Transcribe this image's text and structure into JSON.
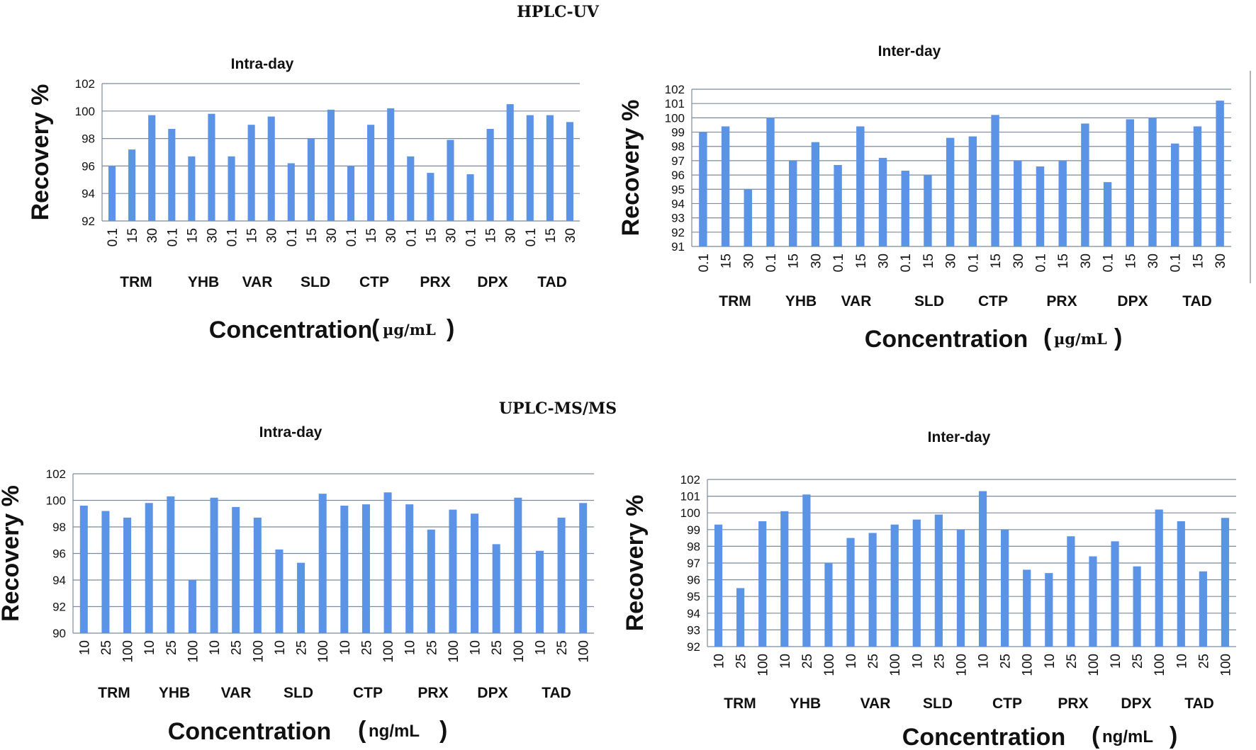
{
  "sections": {
    "top": "HPLC-UV",
    "bottom": "UPLC-MS/MS"
  },
  "chart_data": [
    {
      "type": "bar",
      "title": "Intra-day",
      "ylabel": "Recovery %",
      "xlabel": "Concentration",
      "unit": "µg/mL",
      "ylim": [
        92,
        102
      ],
      "yticks": [
        92,
        94,
        96,
        98,
        100,
        102
      ],
      "grid": true,
      "groups": [
        "TRM",
        "YHB",
        "VAR",
        "SLD",
        "CTP",
        "PRX",
        "DPX",
        "TAD"
      ],
      "categories": [
        "0.1",
        "15",
        "30",
        "0.1",
        "15",
        "30",
        "0.1",
        "15",
        "30",
        "0.1",
        "15",
        "30",
        "0.1",
        "15",
        "30",
        "0.1",
        "15",
        "30",
        "0.1",
        "15",
        "30",
        "0.1",
        "15",
        "30"
      ],
      "values": [
        96.0,
        97.2,
        99.7,
        98.7,
        96.7,
        99.8,
        96.7,
        99.0,
        99.6,
        96.2,
        98.0,
        100.1,
        96.0,
        99.0,
        100.2,
        96.7,
        95.5,
        97.9,
        95.4,
        98.7,
        100.5,
        99.7,
        99.7,
        99.2
      ],
      "color": "#5b93e6"
    },
    {
      "type": "bar",
      "title": "Inter-day",
      "ylabel": "Recovery %",
      "xlabel": "Concentration",
      "unit": "µg/mL",
      "ylim": [
        91,
        102
      ],
      "yticks": [
        91,
        92,
        93,
        94,
        95,
        96,
        97,
        98,
        99,
        100,
        101,
        102
      ],
      "grid": true,
      "groups": [
        "TRM",
        "YHB",
        "VAR",
        "SLD",
        "CTP",
        "PRX",
        "DPX",
        "TAD"
      ],
      "categories": [
        "0.1",
        "15",
        "30",
        "0.1",
        "15",
        "30",
        "0.1",
        "15",
        "30",
        "0.1",
        "15",
        "30",
        "0.1",
        "15",
        "30",
        "0.1",
        "15",
        "30",
        "0.1",
        "15",
        "30",
        "0.1",
        "15",
        "30"
      ],
      "values": [
        99.0,
        99.4,
        95.0,
        100.0,
        97.0,
        98.3,
        96.7,
        99.4,
        97.2,
        96.3,
        96.0,
        98.6,
        98.7,
        100.2,
        97.0,
        96.6,
        97.0,
        99.6,
        95.5,
        99.9,
        100.0,
        98.2,
        99.4,
        101.2
      ],
      "color": "#5b93e6"
    },
    {
      "type": "bar",
      "title": "Intra-day",
      "ylabel": "Recovery %",
      "xlabel": "Concentration",
      "unit": "ng/mL",
      "ylim": [
        90,
        102
      ],
      "yticks": [
        90,
        92,
        94,
        96,
        98,
        100,
        102
      ],
      "grid": true,
      "groups": [
        "TRM",
        "YHB",
        "VAR",
        "SLD",
        "CTP",
        "PRX",
        "DPX",
        "TAD"
      ],
      "categories": [
        "10",
        "25",
        "100",
        "10",
        "25",
        "100",
        "10",
        "25",
        "100",
        "10",
        "25",
        "100",
        "10",
        "25",
        "100",
        "10",
        "25",
        "100",
        "10",
        "25",
        "100",
        "10",
        "25",
        "100"
      ],
      "values": [
        99.6,
        99.2,
        98.7,
        99.8,
        100.3,
        94.0,
        100.2,
        99.5,
        98.7,
        96.3,
        95.3,
        100.5,
        99.6,
        99.7,
        100.6,
        99.7,
        97.8,
        99.3,
        99.0,
        96.7,
        100.2,
        96.2,
        98.7,
        99.8
      ],
      "color": "#5b93e6"
    },
    {
      "type": "bar",
      "title": "Inter-day",
      "ylabel": "Recovery %",
      "xlabel": "Concentration",
      "unit": "ng/mL",
      "ylim": [
        92,
        102
      ],
      "yticks": [
        92,
        93,
        94,
        95,
        96,
        97,
        98,
        99,
        100,
        101,
        102
      ],
      "grid": true,
      "groups": [
        "TRM",
        "YHB",
        "VAR",
        "SLD",
        "CTP",
        "PRX",
        "DPX",
        "TAD"
      ],
      "categories": [
        "10",
        "25",
        "100",
        "10",
        "25",
        "100",
        "10",
        "25",
        "100",
        "10",
        "25",
        "100",
        "10",
        "25",
        "100",
        "10",
        "25",
        "100",
        "10",
        "25",
        "100",
        "10",
        "25",
        "100"
      ],
      "values": [
        99.3,
        95.5,
        99.5,
        100.1,
        101.1,
        97.0,
        98.5,
        98.8,
        99.3,
        99.6,
        99.9,
        99.0,
        101.3,
        99.0,
        96.6,
        96.4,
        98.6,
        97.4,
        98.3,
        96.8,
        100.2,
        99.5,
        96.5,
        99.7
      ],
      "color": "#5b93e6"
    }
  ]
}
